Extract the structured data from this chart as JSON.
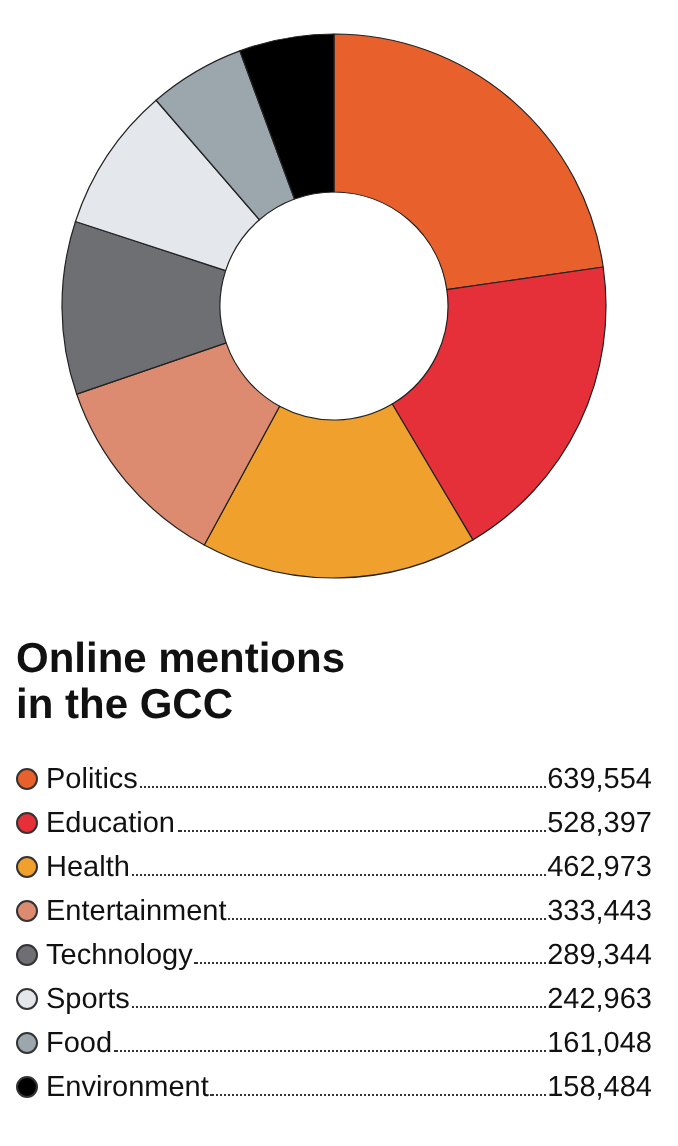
{
  "chart_data": {
    "type": "donut",
    "title": "Online mentions\nin the GCC",
    "categories": [
      "Politics",
      "Education",
      "Health",
      "Entertainment",
      "Technology",
      "Sports",
      "Food",
      "Environment"
    ],
    "values": [
      639554,
      528397,
      462973,
      333443,
      289344,
      242963,
      161048,
      158484
    ],
    "colors": [
      "#e8612c",
      "#e5303a",
      "#f0a02c",
      "#dc8a70",
      "#6d6f73",
      "#e4e8ec",
      "#9ca7ad",
      "#000000"
    ],
    "value_labels": [
      "639,554",
      "528,397",
      "462,973",
      "333,443",
      "289,344",
      "242,963",
      "161,048",
      "158,484"
    ],
    "legend": "bottom"
  }
}
